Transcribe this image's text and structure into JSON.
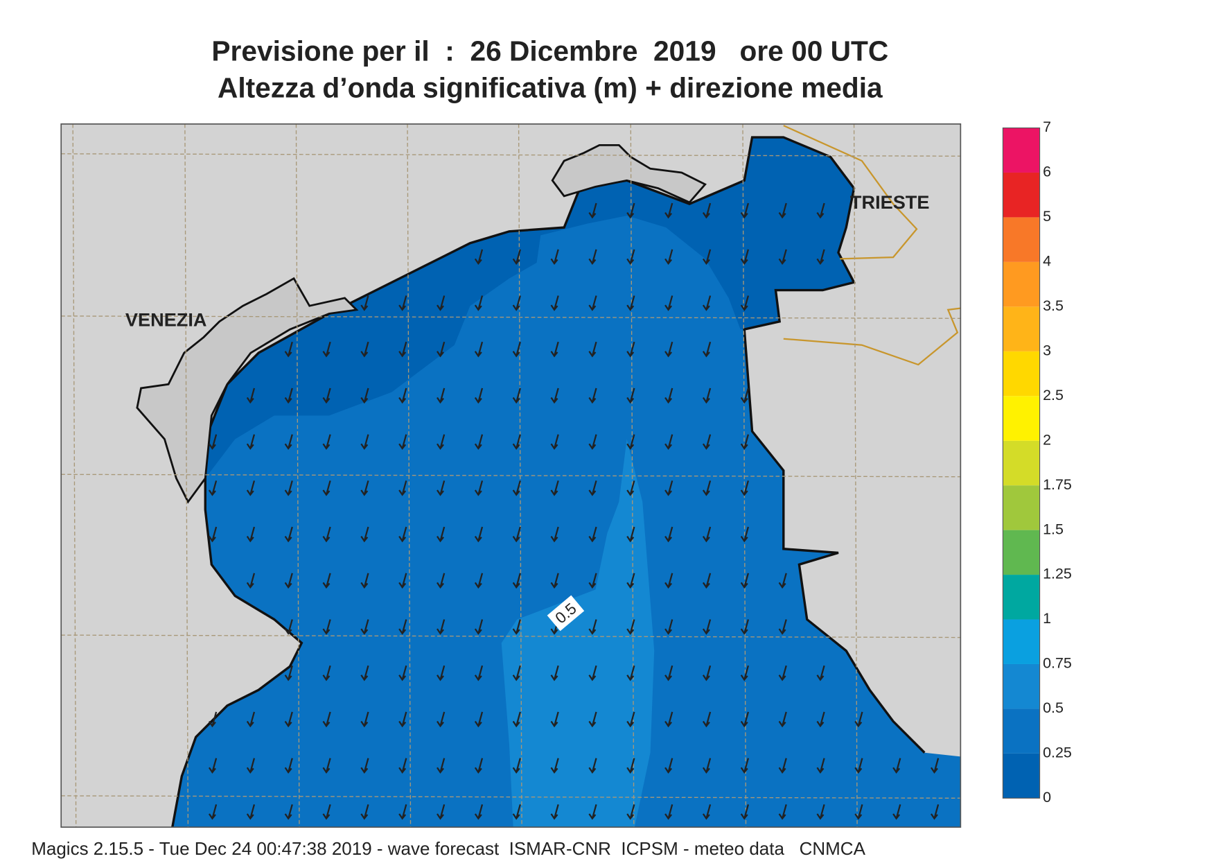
{
  "title": "Previsione per il  :  26 Dicembre  2019   ore 00 UTC",
  "subtitle": "Altezza d’onda significativa (m) + direzione media",
  "places": [
    "VENEZIA",
    "TRIESTE"
  ],
  "contour_label": 0.5,
  "footer": "Magics 2.15.5 - Tue Dec 24 00:47:38 2019 - wave forecast  ISMAR-CNR  ICPSM - meteo data   CNMCA",
  "colorbar": {
    "levels": [
      0,
      0.25,
      0.5,
      0.75,
      1,
      1.25,
      1.5,
      1.75,
      2,
      2.5,
      3,
      3.5,
      4,
      5,
      6,
      7
    ],
    "colors": [
      "#0062b2",
      "#0a72c2",
      "#1488d2",
      "#0aa0e0",
      "#00a8a0",
      "#60b850",
      "#a0c83c",
      "#d4dc28",
      "#fff200",
      "#ffd800",
      "#ffb418",
      "#ff9a20",
      "#f87828",
      "#e82424",
      "#ec1464"
    ]
  }
}
